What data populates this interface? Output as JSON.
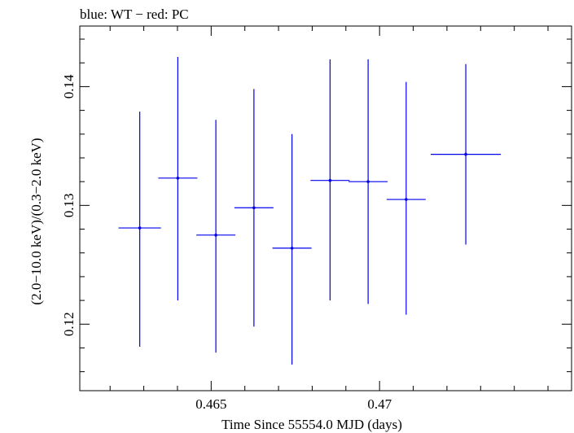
{
  "chart_data": {
    "type": "scatter",
    "title": "blue: WT − red: PC",
    "xlabel": "Time Since 55554.0 MJD (days)",
    "ylabel": "(2.0−10.0 keV)/(0.3−2.0 keV)",
    "xlim": [
      0.4611,
      0.4757
    ],
    "ylim": [
      0.1144,
      0.1451
    ],
    "x_major_ticks": [
      0.465,
      0.47
    ],
    "x_tick_labels": [
      "0.465",
      "0.47"
    ],
    "x_minor_step": 0.001,
    "y_major_ticks": [
      0.12,
      0.13,
      0.14
    ],
    "y_tick_labels": [
      "0.12",
      "0.13",
      "0.14"
    ],
    "y_minor_step": 0.002,
    "grid": false,
    "series": [
      {
        "color": "#0000ee",
        "points": [
          {
            "x": 0.46288,
            "y": 0.1281,
            "xerr": 0.00063,
            "ylo": 0.1181,
            "yhi": 0.1379
          },
          {
            "x": 0.46401,
            "y": 0.1323,
            "xerr": 0.00058,
            "ylo": 0.122,
            "yhi": 0.1425
          },
          {
            "x": 0.46514,
            "y": 0.1275,
            "xerr": 0.00058,
            "ylo": 0.1176,
            "yhi": 0.1372
          },
          {
            "x": 0.46627,
            "y": 0.1298,
            "xerr": 0.00058,
            "ylo": 0.1198,
            "yhi": 0.1398
          },
          {
            "x": 0.4674,
            "y": 0.1264,
            "xerr": 0.00058,
            "ylo": 0.1166,
            "yhi": 0.136
          },
          {
            "x": 0.46853,
            "y": 0.1321,
            "xerr": 0.00058,
            "ylo": 0.122,
            "yhi": 0.1423
          },
          {
            "x": 0.46966,
            "y": 0.132,
            "xerr": 0.00058,
            "ylo": 0.1217,
            "yhi": 0.1423
          },
          {
            "x": 0.47079,
            "y": 0.1305,
            "xerr": 0.00058,
            "ylo": 0.1208,
            "yhi": 0.1404
          },
          {
            "x": 0.47256,
            "y": 0.1343,
            "xerr": 0.00104,
            "ylo": 0.1267,
            "yhi": 0.1419
          }
        ]
      }
    ]
  }
}
